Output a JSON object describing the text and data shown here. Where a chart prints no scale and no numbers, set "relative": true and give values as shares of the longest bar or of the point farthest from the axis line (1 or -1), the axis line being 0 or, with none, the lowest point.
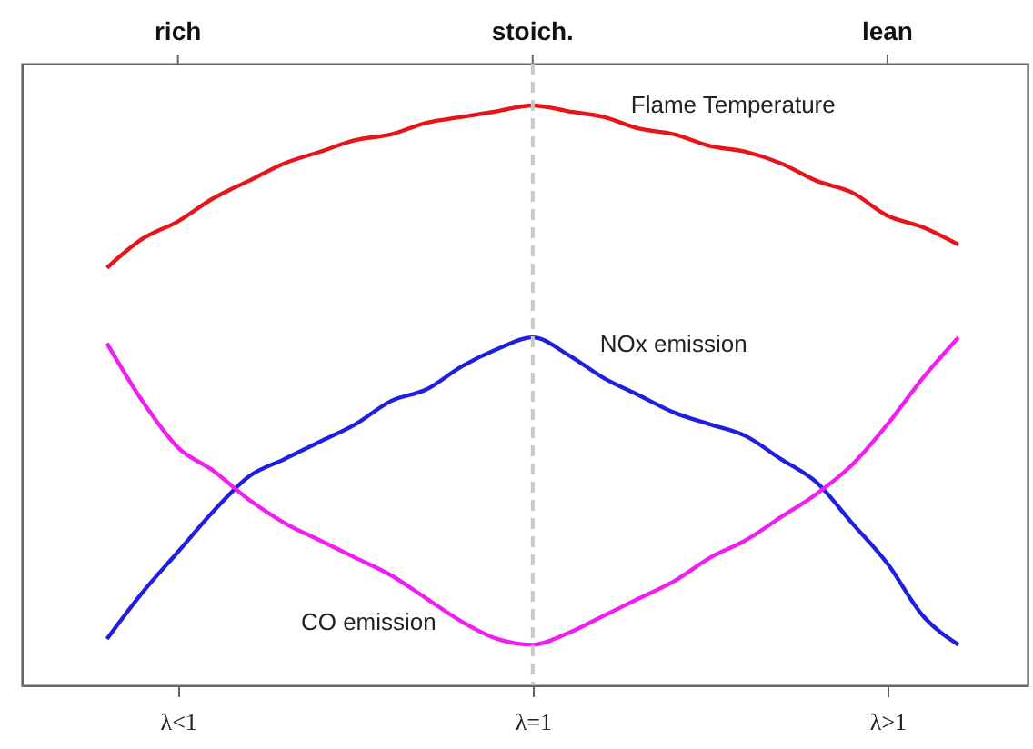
{
  "chart_data": {
    "type": "line",
    "relative": true,
    "categories": [
      null,
      null,
      "λ<1",
      null,
      null,
      null,
      null,
      null,
      null,
      null,
      null,
      null,
      "λ=1",
      null,
      null,
      null,
      null,
      null,
      null,
      null,
      null,
      null,
      "λ>1",
      null,
      null
    ],
    "tick_labels": "x",
    "line_style": "solid",
    "annotations": [
      {
        "text": "rich",
        "x": "λ<1"
      },
      {
        "text": "stoich.",
        "x": "λ=1"
      },
      {
        "text": "lean",
        "x": "λ>1"
      }
    ],
    "ref_lines": [
      {
        "axis": "x",
        "value": "λ=1",
        "color": "#c8c8c8",
        "line_style": "dashed"
      }
    ],
    "series": [
      {
        "name": "Flame Temperature",
        "color": "#e8141c",
        "values": [
          0.72,
          0.77,
          0.8,
          0.84,
          0.87,
          0.9,
          0.92,
          0.94,
          0.95,
          0.97,
          0.98,
          0.99,
          1,
          0.99,
          0.98,
          0.96,
          0.95,
          0.93,
          0.92,
          0.9,
          0.87,
          0.85,
          0.81,
          0.79,
          0.76
        ]
      },
      {
        "name": "NOx emission",
        "color": "#1f1fe0",
        "values": [
          0.08,
          0.16,
          0.23,
          0.3,
          0.36,
          0.39,
          0.42,
          0.45,
          0.49,
          0.51,
          0.55,
          0.58,
          0.6,
          0.57,
          0.53,
          0.5,
          0.47,
          0.45,
          0.43,
          0.39,
          0.35,
          0.28,
          0.21,
          0.12,
          0.07
        ]
      },
      {
        "name": "CO emission",
        "color": "#f01ef0",
        "values": [
          0.59,
          0.49,
          0.41,
          0.37,
          0.32,
          0.28,
          0.25,
          0.22,
          0.19,
          0.15,
          0.11,
          0.08,
          0.07,
          0.09,
          0.12,
          0.15,
          0.18,
          0.22,
          0.25,
          0.29,
          0.33,
          0.38,
          0.45,
          0.53,
          0.6
        ]
      }
    ]
  }
}
